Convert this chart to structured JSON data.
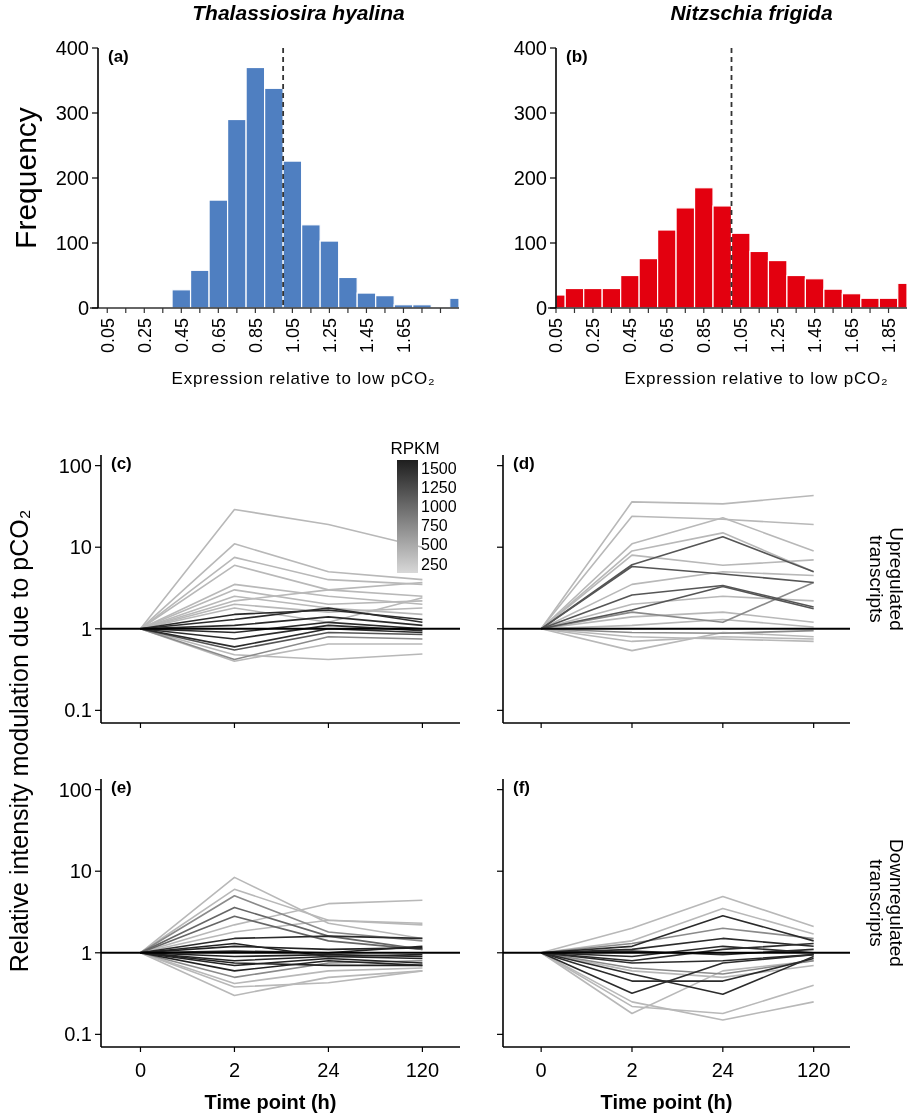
{
  "chart_data": [
    {
      "type": "histogram",
      "title": "Thalassiosira hyalina",
      "ylabel": "Frequency",
      "xlabel": "Expression relative to low pCO₂",
      "color": "#4f7fc1",
      "annotations": [
        "(a)"
      ],
      "bins": [
        0.4,
        0.5,
        0.6,
        0.7,
        0.8,
        0.9,
        1.0,
        1.1,
        1.2,
        1.3,
        1.4,
        1.5,
        1.6,
        1.7,
        1.8,
        1.9,
        1.95
      ],
      "values": [
        28,
        58,
        166,
        290,
        370,
        338,
        226,
        128,
        103,
        47,
        23,
        19,
        5,
        5,
        0,
        15
      ],
      "xlim": [
        0,
        1.95
      ],
      "ylim": [
        0,
        400
      ],
      "yticks": [
        0,
        100,
        200,
        300,
        400
      ],
      "xticks": [
        {
          "value": 0.05,
          "label": "0.05"
        },
        {
          "value": 0.15,
          "label": null
        },
        {
          "value": 0.25,
          "label": "0.25"
        },
        {
          "value": 0.35,
          "label": null
        },
        {
          "value": 0.45,
          "label": "0.45"
        },
        {
          "value": 0.55,
          "label": null
        },
        {
          "value": 0.65,
          "label": "0.65"
        },
        {
          "value": 0.75,
          "label": null
        },
        {
          "value": 0.85,
          "label": "0.85"
        },
        {
          "value": 0.95,
          "label": null
        },
        {
          "value": 1.05,
          "label": "1.05"
        },
        {
          "value": 1.15,
          "label": null
        },
        {
          "value": 1.25,
          "label": "1.25"
        },
        {
          "value": 1.35,
          "label": null
        },
        {
          "value": 1.45,
          "label": "1.45"
        },
        {
          "value": 1.55,
          "label": null
        },
        {
          "value": 1.65,
          "label": "1.65"
        },
        {
          "value": 1.75,
          "label": null
        },
        {
          "value": 1.85,
          "label": null
        }
      ],
      "ref_lines": [
        {
          "axis": "x",
          "value": 1.0,
          "color": "#333333",
          "line_style": "dashed"
        }
      ]
    },
    {
      "type": "histogram",
      "title": "Nitzschia frigida",
      "xlabel": "Expression relative to low pCO₂",
      "color": "#e3000f",
      "annotations": [
        "(b)"
      ],
      "bins": [
        0.05,
        0.1,
        0.2,
        0.3,
        0.4,
        0.5,
        0.6,
        0.7,
        0.8,
        0.9,
        1.0,
        1.1,
        1.2,
        1.3,
        1.4,
        1.5,
        1.6,
        1.7,
        1.8,
        1.9,
        1.95
      ],
      "values": [
        20,
        30,
        30,
        30,
        50,
        76,
        120,
        154,
        185,
        157,
        115,
        87,
        73,
        50,
        45,
        29,
        22,
        15,
        15,
        38
      ],
      "xlim": [
        0.05,
        1.95
      ],
      "ylim": [
        0,
        400
      ],
      "yticks": [
        0,
        100,
        200,
        300,
        400
      ],
      "xticks": [
        {
          "value": 0.05,
          "label": "0.05"
        },
        {
          "value": 0.15,
          "label": null
        },
        {
          "value": 0.25,
          "label": "0.25"
        },
        {
          "value": 0.35,
          "label": null
        },
        {
          "value": 0.45,
          "label": "0.45"
        },
        {
          "value": 0.55,
          "label": null
        },
        {
          "value": 0.65,
          "label": "0.65"
        },
        {
          "value": 0.75,
          "label": null
        },
        {
          "value": 0.85,
          "label": "0.85"
        },
        {
          "value": 0.95,
          "label": null
        },
        {
          "value": 1.05,
          "label": "1.05"
        },
        {
          "value": 1.15,
          "label": null
        },
        {
          "value": 1.25,
          "label": "1.25"
        },
        {
          "value": 1.35,
          "label": null
        },
        {
          "value": 1.45,
          "label": "1.45"
        },
        {
          "value": 1.55,
          "label": null
        },
        {
          "value": 1.65,
          "label": "1.65"
        },
        {
          "value": 1.75,
          "label": null
        },
        {
          "value": 1.85,
          "label": "1.85"
        }
      ],
      "ref_lines": [
        {
          "axis": "x",
          "value": 1.0,
          "color": "#333333",
          "line_style": "dashed"
        }
      ]
    },
    {
      "type": "line",
      "ylabel": "Relative intensity modulation due to pCO₂",
      "annotations": [
        "(c)",
        "1500",
        "1250",
        "1000",
        "750",
        "500",
        "250"
      ],
      "categories": [
        "0",
        "2",
        "24",
        "120"
      ],
      "log": "y",
      "ylim": [
        0.07,
        135
      ],
      "yticks": [
        0.1,
        1,
        10,
        100
      ],
      "tick_labels": "y",
      "clabel": "RPKM",
      "ref_lines": [
        {
          "axis": "y",
          "value": 1,
          "color": "#000000"
        }
      ],
      "series": [
        {
          "color": "#b8b8b8",
          "values": [
            1,
            29,
            19,
            10
          ]
        },
        {
          "color": "#b8b8b8",
          "values": [
            1,
            11,
            5,
            4
          ]
        },
        {
          "color": "#b8b8b8",
          "values": [
            1,
            7.5,
            4,
            3.5
          ]
        },
        {
          "color": "#b8b8b8",
          "values": [
            1,
            6,
            3,
            2.5
          ]
        },
        {
          "color": "#b8b8b8",
          "values": [
            1,
            3.5,
            2.5,
            2
          ]
        },
        {
          "color": "#b8b8b8",
          "values": [
            1,
            3,
            2,
            2.2
          ]
        },
        {
          "color": "#b8b8b8",
          "values": [
            1,
            2.5,
            1.8,
            1.5
          ]
        },
        {
          "color": "#b8b8b8",
          "values": [
            1,
            2.2,
            3,
            3.7
          ]
        },
        {
          "color": "#b8b8b8",
          "values": [
            1,
            1.8,
            1.2,
            2.4
          ]
        },
        {
          "color": "#b8b8b8",
          "values": [
            1,
            2,
            1.6,
            1.8
          ]
        },
        {
          "color": "#b8b8b8",
          "values": [
            1,
            0.48,
            0.42,
            0.49
          ]
        },
        {
          "color": "#b8b8b8",
          "values": [
            1,
            0.4,
            0.65,
            0.65
          ]
        },
        {
          "color": "#8a8a8a",
          "values": [
            1,
            0.42,
            0.8,
            0.75
          ]
        },
        {
          "color": "#555555",
          "values": [
            1,
            0.55,
            0.9,
            0.85
          ]
        },
        {
          "color": "#2b2b2b",
          "values": [
            1,
            1.5,
            1.7,
            1.3
          ]
        },
        {
          "color": "#2b2b2b",
          "values": [
            1,
            1.3,
            1.8,
            1.2
          ]
        },
        {
          "color": "#2b2b2b",
          "values": [
            1,
            1.1,
            1.4,
            1.1
          ]
        },
        {
          "color": "#2b2b2b",
          "values": [
            1,
            0.9,
            1.2,
            1.0
          ]
        },
        {
          "color": "#2b2b2b",
          "values": [
            1,
            0.75,
            1.1,
            0.95
          ]
        },
        {
          "color": "#2b2b2b",
          "values": [
            1,
            0.6,
            1.0,
            0.9
          ]
        }
      ]
    },
    {
      "type": "line",
      "annotations": [
        "(d)",
        "Upregulated transcripts"
      ],
      "categories": [
        "0",
        "2",
        "24",
        "120"
      ],
      "log": "y",
      "ylim": [
        0.07,
        135
      ],
      "yticks": [
        0.1,
        1,
        10,
        100
      ],
      "tick_labels": false,
      "ref_lines": [
        {
          "axis": "y",
          "value": 1,
          "color": "#000000"
        }
      ],
      "series": [
        {
          "color": "#b8b8b8",
          "values": [
            1,
            36,
            34,
            43
          ]
        },
        {
          "color": "#b8b8b8",
          "values": [
            1,
            24,
            22,
            19
          ]
        },
        {
          "color": "#b8b8b8",
          "values": [
            1,
            11,
            23,
            9
          ]
        },
        {
          "color": "#b8b8b8",
          "values": [
            1,
            9,
            15,
            5
          ]
        },
        {
          "color": "#b8b8b8",
          "values": [
            1,
            8,
            6,
            7
          ]
        },
        {
          "color": "#b8b8b8",
          "values": [
            1,
            3.5,
            5,
            4.5
          ]
        },
        {
          "color": "#b8b8b8",
          "values": [
            1,
            2,
            2.5,
            2.2
          ]
        },
        {
          "color": "#b8b8b8",
          "values": [
            1,
            1.4,
            1.6,
            1.2
          ]
        },
        {
          "color": "#b8b8b8",
          "values": [
            1,
            1.1,
            1.3,
            1.05
          ]
        },
        {
          "color": "#b8b8b8",
          "values": [
            1,
            0.7,
            0.8,
            0.75
          ]
        },
        {
          "color": "#b8b8b8",
          "values": [
            1,
            0.54,
            0.9,
            0.8
          ]
        },
        {
          "color": "#b8b8b8",
          "values": [
            1,
            0.8,
            0.75,
            0.7
          ]
        },
        {
          "color": "#8a8a8a",
          "values": [
            1,
            0.9,
            0.88,
            0.95
          ]
        },
        {
          "color": "#8a8a8a",
          "values": [
            1,
            1.6,
            1.2,
            3.7
          ]
        },
        {
          "color": "#555555",
          "values": [
            1,
            6.1,
            13.4,
            5
          ]
        },
        {
          "color": "#555555",
          "values": [
            1,
            5.8,
            4.7,
            3.7
          ]
        },
        {
          "color": "#555555",
          "values": [
            1,
            2.6,
            3.4,
            1.85
          ]
        },
        {
          "color": "#555555",
          "values": [
            1,
            1.7,
            3.3,
            1.76
          ]
        }
      ]
    },
    {
      "type": "line",
      "xlabel": "Time point (h)",
      "annotations": [
        "(e)"
      ],
      "categories": [
        "0",
        "2",
        "24",
        "120"
      ],
      "log": "y",
      "ylim": [
        0.07,
        135
      ],
      "yticks": [
        0.1,
        1,
        10,
        100
      ],
      "ref_lines": [
        {
          "axis": "y",
          "value": 1,
          "color": "#000000"
        }
      ],
      "series": [
        {
          "color": "#b8b8b8",
          "values": [
            1,
            8.4,
            2.3,
            1.5
          ]
        },
        {
          "color": "#b8b8b8",
          "values": [
            1,
            6,
            2.5,
            2.3
          ]
        },
        {
          "color": "#b8b8b8",
          "values": [
            1,
            2.2,
            4,
            4.4
          ]
        },
        {
          "color": "#b8b8b8",
          "values": [
            1,
            1.8,
            2.5,
            2.2
          ]
        },
        {
          "color": "#b8b8b8",
          "values": [
            1,
            0.42,
            0.6,
            0.65
          ]
        },
        {
          "color": "#b8b8b8",
          "values": [
            1,
            0.3,
            0.5,
            0.6
          ]
        },
        {
          "color": "#b8b8b8",
          "values": [
            1,
            0.38,
            0.43,
            0.6
          ]
        },
        {
          "color": "#8a8a8a",
          "values": [
            1,
            5,
            1.8,
            1.4
          ]
        },
        {
          "color": "#666666",
          "values": [
            1,
            3.6,
            1.6,
            1.1
          ]
        },
        {
          "color": "#666666",
          "values": [
            1,
            2.8,
            1.4,
            1.1
          ]
        },
        {
          "color": "#8a8a8a",
          "values": [
            1,
            0.5,
            0.75,
            0.8
          ]
        },
        {
          "color": "#2b2b2b",
          "values": [
            1,
            1.5,
            1.6,
            1.5
          ]
        },
        {
          "color": "#222222",
          "values": [
            1,
            1.2,
            1.1,
            1.15
          ]
        },
        {
          "color": "#222222",
          "values": [
            1,
            1.05,
            1.0,
            1.2
          ]
        },
        {
          "color": "#222222",
          "values": [
            1,
            0.9,
            0.95,
            0.9
          ]
        },
        {
          "color": "#222222",
          "values": [
            1,
            0.8,
            0.9,
            0.85
          ]
        },
        {
          "color": "#222222",
          "values": [
            1,
            0.7,
            0.85,
            0.75
          ]
        },
        {
          "color": "#222222",
          "values": [
            1,
            0.6,
            0.8,
            0.7
          ]
        },
        {
          "color": "#222222",
          "values": [
            1,
            0.75,
            0.7,
            0.7
          ]
        },
        {
          "color": "#222222",
          "values": [
            1,
            1.3,
            0.9,
            0.95
          ]
        }
      ]
    },
    {
      "type": "line",
      "xlabel": "Time point (h)",
      "annotations": [
        "(f)",
        "Downregulated transcripts"
      ],
      "categories": [
        "0",
        "2",
        "24",
        "120"
      ],
      "log": "y",
      "ylim": [
        0.07,
        135
      ],
      "yticks": [
        0.1,
        1,
        10,
        100
      ],
      "tick_labels": "x",
      "ref_lines": [
        {
          "axis": "y",
          "value": 1,
          "color": "#000000"
        }
      ],
      "series": [
        {
          "color": "#b8b8b8",
          "values": [
            1,
            2,
            4.9,
            2.1
          ]
        },
        {
          "color": "#b8b8b8",
          "values": [
            1,
            1.4,
            3.5,
            1.7
          ]
        },
        {
          "color": "#b8b8b8",
          "values": [
            1,
            0.18,
            0.6,
            0.8
          ]
        },
        {
          "color": "#b8b8b8",
          "values": [
            1,
            0.25,
            0.15,
            0.25
          ]
        },
        {
          "color": "#b8b8b8",
          "values": [
            1,
            0.22,
            0.18,
            0.4
          ]
        },
        {
          "color": "#b8b8b8",
          "values": [
            1,
            0.6,
            0.5,
            0.7
          ]
        },
        {
          "color": "#8a8a8a",
          "values": [
            1,
            1.3,
            2,
            1.5
          ]
        },
        {
          "color": "#8a8a8a",
          "values": [
            1,
            0.65,
            0.55,
            0.8
          ]
        },
        {
          "color": "#2b2b2b",
          "values": [
            1,
            1.2,
            2.85,
            1.4
          ]
        },
        {
          "color": "#2b2b2b",
          "values": [
            1,
            1.1,
            1.5,
            1.2
          ]
        },
        {
          "color": "#2b2b2b",
          "values": [
            1,
            0.9,
            1.2,
            1.0
          ]
        },
        {
          "color": "#2b2b2b",
          "values": [
            1,
            0.75,
            0.8,
            0.95
          ]
        },
        {
          "color": "#2b2b2b",
          "values": [
            1,
            0.32,
            0.75,
            0.95
          ]
        },
        {
          "color": "#2b2b2b",
          "values": [
            1,
            0.55,
            0.31,
            0.9
          ]
        },
        {
          "color": "#2b2b2b",
          "values": [
            1,
            0.45,
            0.45,
            0.85
          ]
        },
        {
          "color": "#2b2b2b",
          "values": [
            1,
            0.8,
            1.1,
            1.3
          ]
        },
        {
          "color": "#2b2b2b",
          "values": [
            1,
            1.05,
            0.95,
            1.1
          ]
        }
      ]
    }
  ]
}
